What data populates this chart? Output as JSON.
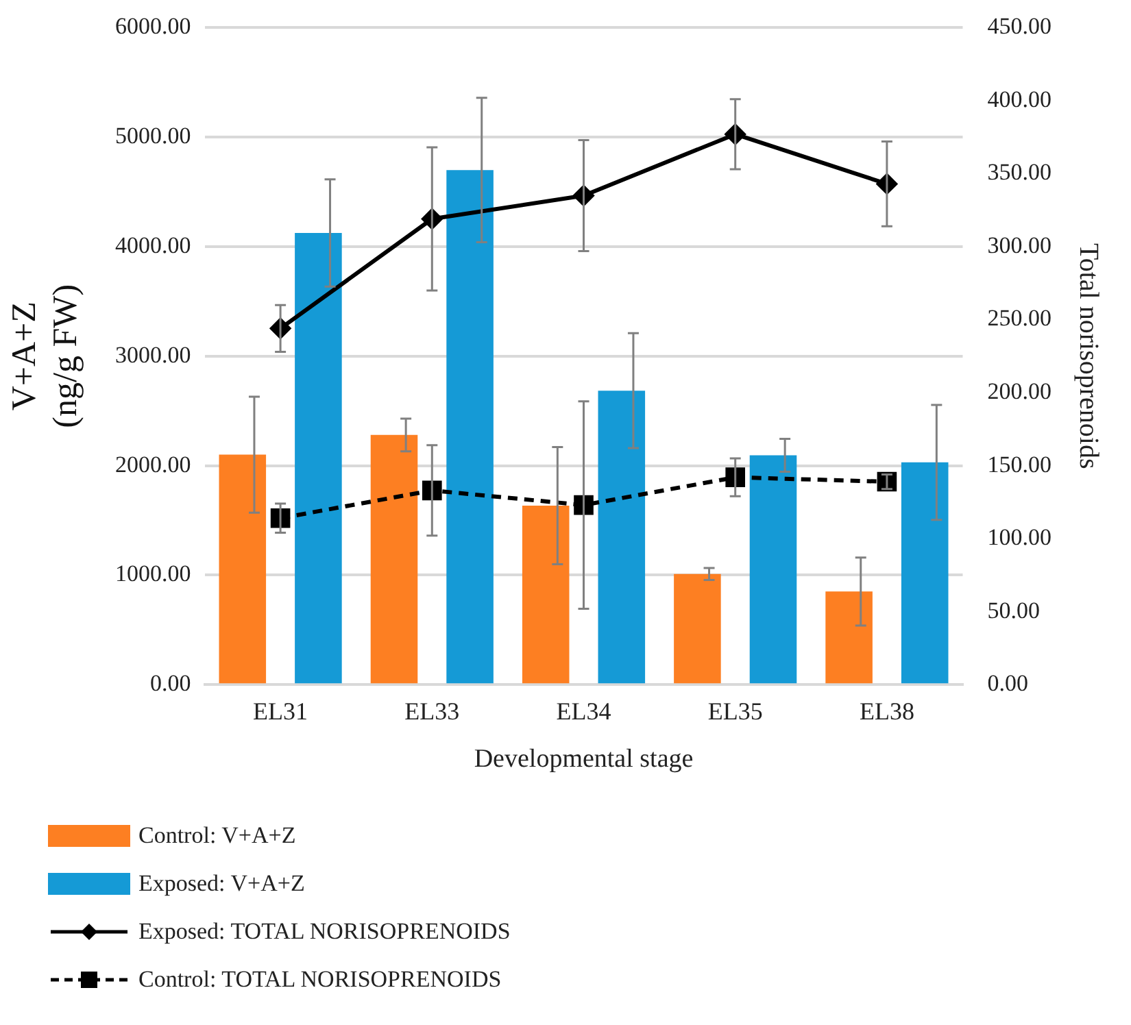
{
  "chart_data": {
    "type": "bar",
    "xlabel": "Developmental stage",
    "ylabel": "V+A+Z (ng/g FW)",
    "y2label": "Total norisoprenoids",
    "categories": [
      "EL31",
      "EL33",
      "EL34",
      "EL35",
      "EL38"
    ],
    "series": [
      {
        "name": "Control: V+A+Z",
        "color": "#fd7f22",
        "values": [
          2100,
          2280,
          1635,
          1010,
          850
        ],
        "errors": [
          530,
          150,
          535,
          55,
          310
        ]
      },
      {
        "name": "Exposed: V+A+Z",
        "color": "#159ad6",
        "values": [
          4125,
          4700,
          2685,
          2095,
          2030
        ],
        "errors": [
          490,
          660,
          525,
          150,
          525
        ]
      },
      {
        "name": "Exposed: TOTAL NORISOPRENOIDS",
        "type": "line",
        "axis": "y2",
        "color": "#000000",
        "marker": "diamond",
        "line_style": "solid",
        "values": [
          244,
          319,
          335,
          377,
          343
        ],
        "errors": [
          16,
          49,
          38,
          24,
          29
        ]
      },
      {
        "name": "Control: TOTAL NORISOPRENOIDS",
        "type": "line",
        "axis": "y2",
        "color": "#000000",
        "marker": "square",
        "line_style": "dashed",
        "values": [
          114,
          133,
          123,
          142,
          139
        ],
        "errors": [
          10,
          31,
          71,
          13,
          5
        ]
      }
    ],
    "ylim": [
      0,
      6000
    ],
    "yticks": [
      {
        "value": 0,
        "label": "0.00"
      },
      {
        "value": 1000,
        "label": "1000.00"
      },
      {
        "value": 2000,
        "label": "2000.00"
      },
      {
        "value": 3000,
        "label": "3000.00"
      },
      {
        "value": 4000,
        "label": "4000.00"
      },
      {
        "value": 5000,
        "label": "5000.00"
      },
      {
        "value": 6000,
        "label": "6000.00"
      }
    ],
    "y2lim": [
      0,
      450
    ],
    "y2ticks": [
      {
        "value": 0,
        "label": "0.00"
      },
      {
        "value": 50,
        "label": "50.00"
      },
      {
        "value": 100,
        "label": "100.00"
      },
      {
        "value": 150,
        "label": "150.00"
      },
      {
        "value": 200,
        "label": "200.00"
      },
      {
        "value": 250,
        "label": "250.00"
      },
      {
        "value": 300,
        "label": "300.00"
      },
      {
        "value": 350,
        "label": "350.00"
      },
      {
        "value": 400,
        "label": "400.00"
      },
      {
        "value": 450,
        "label": "450.00"
      }
    ],
    "grid": "y",
    "legend": "bottom"
  }
}
